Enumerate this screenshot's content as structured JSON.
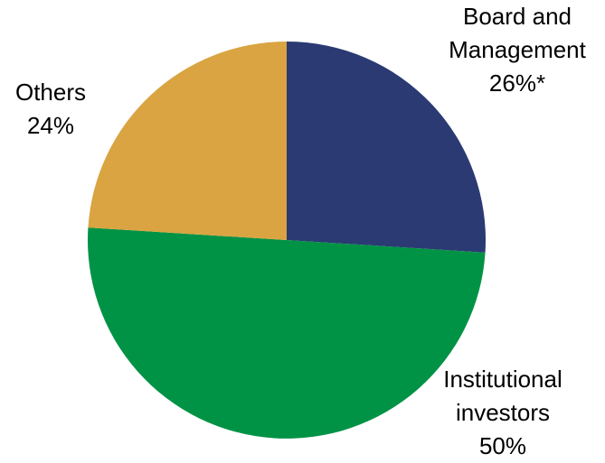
{
  "chart_data": {
    "type": "pie",
    "categories": [
      "Board and Management",
      "Institutional investors",
      "Others"
    ],
    "values": [
      26,
      50,
      24
    ],
    "value_labels": [
      "26%*",
      "50%",
      "24%"
    ],
    "colors": [
      "#2b3a72",
      "#009245",
      "#d9a441"
    ]
  }
}
